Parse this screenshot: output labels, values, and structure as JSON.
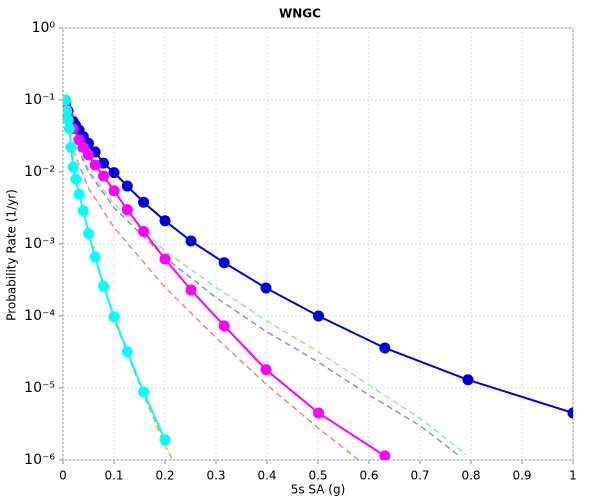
{
  "chart_data": {
    "type": "line",
    "title": "WNGC",
    "x_label": "5s SA (g)",
    "y_label": "Probability Rate (1/yr)",
    "y_scale": "log",
    "grid": true,
    "xlim": [
      0,
      1
    ],
    "xticks": [
      0,
      0.1,
      0.2,
      0.3,
      0.4,
      0.5,
      0.6,
      0.7,
      0.8,
      0.9,
      1
    ],
    "ylim": [
      1e-06,
      1
    ],
    "yticks": [
      {
        "value": 1,
        "label": "10⁰"
      },
      {
        "value": 0.1,
        "label": "10⁻¹"
      },
      {
        "value": 0.01,
        "label": "10⁻²"
      },
      {
        "value": 0.001,
        "label": "10⁻³"
      },
      {
        "value": 0.0001,
        "label": "10⁻⁴"
      },
      {
        "value": 1e-05,
        "label": "10⁻⁵"
      },
      {
        "value": 1e-06,
        "label": "10⁻⁶"
      }
    ],
    "series": [
      {
        "color": "#90ee90",
        "style": "dashed",
        "markers": false,
        "x": [
          0.02,
          0.05,
          0.1,
          0.2,
          0.3,
          0.4,
          0.5,
          0.6,
          0.7,
          0.79
        ],
        "values": [
          0.03,
          0.011,
          0.0036,
          0.0008,
          0.00025,
          8.5e-05,
          3.2e-05,
          1.1e-05,
          3.8e-06,
          1.2e-06
        ]
      },
      {
        "color": "#8c8cec",
        "style": "dashed",
        "markers": false,
        "x": [
          0.02,
          0.05,
          0.1,
          0.2,
          0.3,
          0.4,
          0.5,
          0.6,
          0.7,
          0.78
        ],
        "values": [
          0.03,
          0.01,
          0.0032,
          0.00065,
          0.00018,
          6e-05,
          2.3e-05,
          8e-06,
          3e-06,
          1.1e-06
        ]
      },
      {
        "color": "#f08878",
        "style": "dashed",
        "markers": false,
        "x": [
          0.02,
          0.05,
          0.1,
          0.2,
          0.3,
          0.4,
          0.5,
          0.58
        ],
        "values": [
          0.02,
          0.006,
          0.0017,
          0.00025,
          5e-05,
          1.1e-05,
          2.8e-06,
          1e-06
        ]
      },
      {
        "color": "#ffa040",
        "style": "dashed",
        "markers": false,
        "x": [
          0.005,
          0.01,
          0.02,
          0.05,
          0.1,
          0.158,
          0.2,
          0.215
        ],
        "values": [
          0.1,
          0.05,
          0.012,
          0.0014,
          9e-05,
          8e-06,
          1.6e-06,
          1e-06
        ]
      },
      {
        "color": "#0000dd",
        "style": "solid",
        "markers": true,
        "x": [
          0.005,
          0.01,
          0.02,
          0.025,
          0.0316,
          0.0398,
          0.05,
          0.063,
          0.0794,
          0.1,
          0.126,
          0.158,
          0.2,
          0.251,
          0.316,
          0.398,
          0.501,
          0.631,
          0.794,
          1
        ],
        "values": [
          0.085,
          0.07,
          0.05,
          0.044,
          0.038,
          0.031,
          0.025,
          0.019,
          0.0133,
          0.0098,
          0.0064,
          0.0038,
          0.0021,
          0.0011,
          0.00055,
          0.000245,
          0.0001,
          3.6e-05,
          1.3e-05,
          4.5e-06
        ]
      },
      {
        "color": "#ff00ff",
        "style": "solid",
        "markers": true,
        "x": [
          0.005,
          0.01,
          0.02,
          0.0316,
          0.0398,
          0.05,
          0.063,
          0.0794,
          0.1,
          0.126,
          0.158,
          0.2,
          0.251,
          0.316,
          0.398,
          0.501,
          0.631
        ],
        "values": [
          0.08,
          0.06,
          0.04,
          0.028,
          0.022,
          0.0173,
          0.0125,
          0.0088,
          0.0055,
          0.003,
          0.0015,
          0.00062,
          0.00023,
          7.3e-05,
          1.8e-05,
          4.5e-06,
          1.14e-06
        ]
      },
      {
        "color": "#00ffff",
        "style": "solid",
        "markers": true,
        "x": [
          0.005,
          0.0075,
          0.01,
          0.0126,
          0.0158,
          0.02,
          0.025,
          0.0316,
          0.0398,
          0.05,
          0.063,
          0.0794,
          0.1,
          0.126,
          0.158,
          0.2
        ],
        "values": [
          0.1,
          0.07,
          0.053,
          0.04,
          0.022,
          0.0117,
          0.008,
          0.0049,
          0.0029,
          0.0014,
          0.00066,
          0.00026,
          9.8e-05,
          3.2e-05,
          8.8e-06,
          1.9e-06
        ]
      }
    ]
  }
}
